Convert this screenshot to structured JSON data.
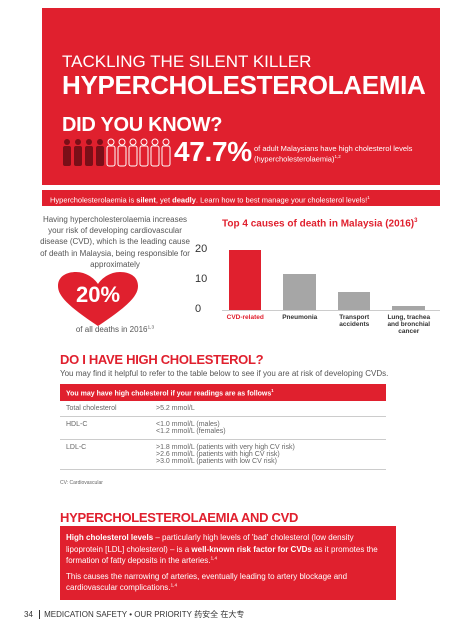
{
  "header": {
    "kicker": "TACKLING THE SILENT KILLER",
    "title": "HYPERCHOLESTEROLAEMIA",
    "did_you_know": "DID YOU KNOW?",
    "stat": "47.7%",
    "stat_text": "of adult Malaysians have high cholesterol levels (hypercholesterolaemia)",
    "stat_sup": "1,2"
  },
  "banner": {
    "parts": [
      "Hypercholesterolaemia is ",
      {
        "text": "silent",
        "bold": true
      },
      ", yet ",
      {
        "text": "deadly",
        "bold": true
      },
      ". Learn how to best manage your cholesterol levels!"
    ],
    "sup": "1"
  },
  "intro": {
    "text": "Having hypercholesterolaemia increases your risk of developing cardiovascular disease (CVD), which is the leading cause of death in Malaysia, being responsible for approximately",
    "highlight": "20%",
    "after": "of all deaths in 2016",
    "after_sup": "1,3"
  },
  "chart_data": {
    "type": "bar",
    "title": "Top 4 causes of death in Malaysia (2016)",
    "title_sup": "3",
    "categories": [
      "CVD-related",
      "Pneumonia",
      "Transport accidents",
      "Lung, trachea and bronchial cancer"
    ],
    "values": [
      20,
      12,
      6,
      1.2
    ],
    "colors": [
      "#e0202e",
      "#a6a6a6",
      "#a6a6a6",
      "#a6a6a6"
    ],
    "ylim": [
      0,
      22
    ],
    "yticks": [
      0,
      10,
      20
    ]
  },
  "section1": {
    "title": "DO I HAVE HIGH CHOLESTEROL?",
    "intro": "You may find it helpful to refer to the table below to see if you are at risk of developing CVDs.",
    "table": {
      "header": "You may have high cholesterol if your readings are as follows",
      "header_sup": "1",
      "rows": [
        [
          "Total cholesterol",
          [
            ">5.2 mmol/L"
          ]
        ],
        [
          "HDL-C",
          [
            "<1.0 mmol/L (males)",
            "<1.2 mmol/L (females)"
          ]
        ],
        [
          "LDL-C",
          [
            ">1.8 mmol/L (patients with very high CV risk)",
            ">2.6 mmol/L (patients with high CV risk)",
            ">3.0 mmol/L (patients with low CV risk)"
          ]
        ]
      ]
    },
    "footnote": "CV: Cardiovascular"
  },
  "section2": {
    "title": "HYPERCHOLESTEROLAEMIA AND CVD",
    "paragraphs": [
      {
        "parts": [
          {
            "text": "High cholesterol levels",
            "bold": true
          },
          " – particularly high levels of 'bad' cholesterol (low density lipoprotein [LDL] cholesterol) – is a ",
          {
            "text": "well-known risk factor for CVDs",
            "bold": true
          },
          " as it promotes the formation of fatty deposits in the arteries."
        ],
        "sup": "1,4"
      },
      {
        "parts": [
          "This causes the narrowing of arteries, eventually leading to artery blockage and cardiovascular complications."
        ],
        "sup": "1,4"
      }
    ]
  },
  "footer": {
    "page": "34",
    "text": "MEDICATION SAFETY • OUR PRIORITY",
    "cjk": "药安全 在大专"
  }
}
